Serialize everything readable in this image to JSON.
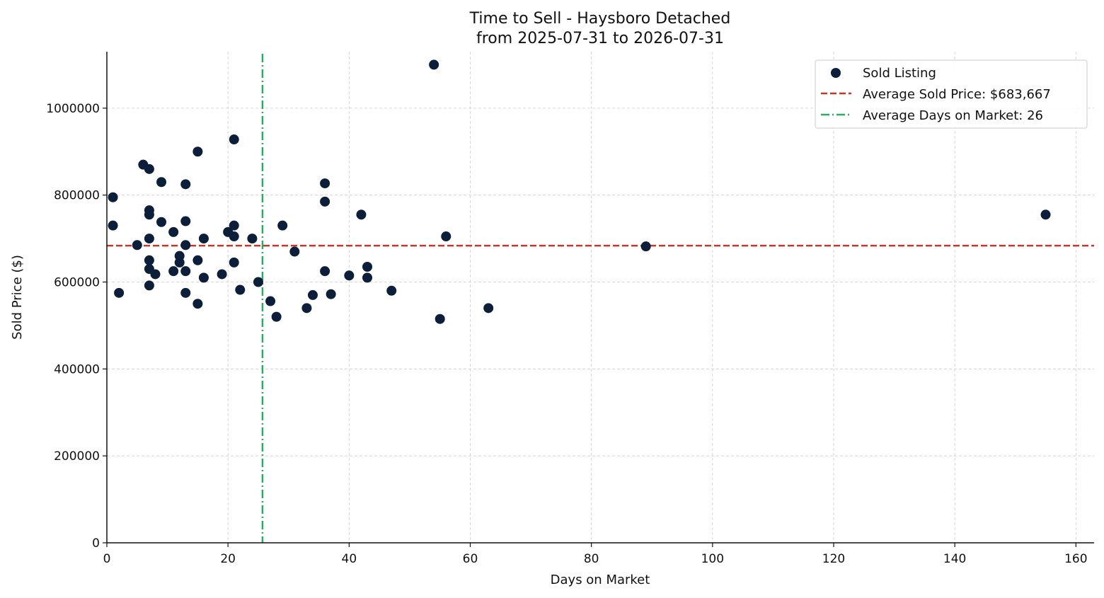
{
  "chart_data": {
    "type": "scatter",
    "title": "Time to Sell - Haysboro Detached",
    "subtitle": "from 2025-07-31 to 2026-07-31",
    "xlabel": "Days on Market",
    "ylabel": "Sold Price ($)",
    "xlim": [
      0,
      163
    ],
    "ylim": [
      0,
      1130000
    ],
    "x_ticks": [
      0,
      20,
      40,
      60,
      80,
      100,
      120,
      140,
      160
    ],
    "y_ticks": [
      0,
      200000,
      400000,
      600000,
      800000,
      1000000
    ],
    "grid": true,
    "legend_position": "top-right",
    "series": [
      {
        "name": "Sold Listing",
        "color": "#0b1f3a",
        "points": [
          {
            "x": 1,
            "y": 795000
          },
          {
            "x": 1,
            "y": 730000
          },
          {
            "x": 2,
            "y": 575000
          },
          {
            "x": 5,
            "y": 685000
          },
          {
            "x": 6,
            "y": 870000
          },
          {
            "x": 7,
            "y": 860000
          },
          {
            "x": 7,
            "y": 765000
          },
          {
            "x": 7,
            "y": 755000
          },
          {
            "x": 7,
            "y": 700000
          },
          {
            "x": 7,
            "y": 650000
          },
          {
            "x": 7,
            "y": 630000
          },
          {
            "x": 7,
            "y": 592000
          },
          {
            "x": 8,
            "y": 618000
          },
          {
            "x": 9,
            "y": 830000
          },
          {
            "x": 9,
            "y": 738000
          },
          {
            "x": 11,
            "y": 715000
          },
          {
            "x": 11,
            "y": 625000
          },
          {
            "x": 12,
            "y": 660000
          },
          {
            "x": 12,
            "y": 645000
          },
          {
            "x": 13,
            "y": 825000
          },
          {
            "x": 13,
            "y": 740000
          },
          {
            "x": 13,
            "y": 685000
          },
          {
            "x": 13,
            "y": 625000
          },
          {
            "x": 13,
            "y": 575000
          },
          {
            "x": 15,
            "y": 900000
          },
          {
            "x": 15,
            "y": 650000
          },
          {
            "x": 15,
            "y": 550000
          },
          {
            "x": 16,
            "y": 700000
          },
          {
            "x": 16,
            "y": 610000
          },
          {
            "x": 19,
            "y": 618000
          },
          {
            "x": 20,
            "y": 715000
          },
          {
            "x": 21,
            "y": 928000
          },
          {
            "x": 21,
            "y": 730000
          },
          {
            "x": 21,
            "y": 705000
          },
          {
            "x": 21,
            "y": 645000
          },
          {
            "x": 22,
            "y": 582000
          },
          {
            "x": 24,
            "y": 700000
          },
          {
            "x": 25,
            "y": 600000
          },
          {
            "x": 27,
            "y": 556000
          },
          {
            "x": 28,
            "y": 520000
          },
          {
            "x": 29,
            "y": 730000
          },
          {
            "x": 31,
            "y": 670000
          },
          {
            "x": 33,
            "y": 540000
          },
          {
            "x": 34,
            "y": 570000
          },
          {
            "x": 36,
            "y": 827000
          },
          {
            "x": 36,
            "y": 785000
          },
          {
            "x": 36,
            "y": 625000
          },
          {
            "x": 37,
            "y": 572000
          },
          {
            "x": 40,
            "y": 615000
          },
          {
            "x": 42,
            "y": 755000
          },
          {
            "x": 43,
            "y": 635000
          },
          {
            "x": 43,
            "y": 610000
          },
          {
            "x": 47,
            "y": 580000
          },
          {
            "x": 54,
            "y": 1100000
          },
          {
            "x": 55,
            "y": 515000
          },
          {
            "x": 56,
            "y": 705000
          },
          {
            "x": 63,
            "y": 540000
          },
          {
            "x": 89,
            "y": 682000
          },
          {
            "x": 155,
            "y": 755000
          }
        ]
      }
    ],
    "reference_lines": [
      {
        "name": "Average Sold Price: $683,667",
        "orientation": "horizontal",
        "value": 683667,
        "style": "dashed",
        "color": "#c0392b"
      },
      {
        "name": "Average Days on Market: 26",
        "orientation": "vertical",
        "value": 25.7,
        "style": "dashdot",
        "color": "#27ae60"
      }
    ],
    "colors": {
      "axis": "#111111",
      "grid": "#cccccc"
    }
  }
}
